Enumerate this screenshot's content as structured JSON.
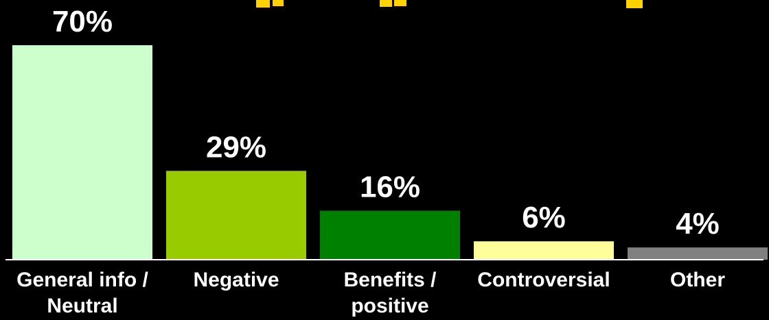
{
  "colors": {
    "background": "#000000",
    "title": "#FFD200",
    "axis": "#FFFFFF",
    "label": "#FFFFFF"
  },
  "chart_data": {
    "type": "bar",
    "title_partial": "…y … p … y…",
    "categories": [
      "General info / Neutral",
      "Negative",
      "Benefits / positive",
      "Controversial",
      "Other"
    ],
    "category_lines": [
      [
        "General info /",
        "Neutral"
      ],
      [
        "Negative"
      ],
      [
        "Benefits /",
        "positive"
      ],
      [
        "Controversial"
      ],
      [
        "Other"
      ]
    ],
    "values": [
      70,
      29,
      16,
      6,
      4
    ],
    "value_labels": [
      "70%",
      "29%",
      "16%",
      "6%",
      "4%"
    ],
    "bar_colors": [
      "#CCFFCC",
      "#99CC00",
      "#008000",
      "#FFFF99",
      "#808080"
    ],
    "ylim": [
      0,
      72
    ],
    "grid": false,
    "legend": "none"
  }
}
